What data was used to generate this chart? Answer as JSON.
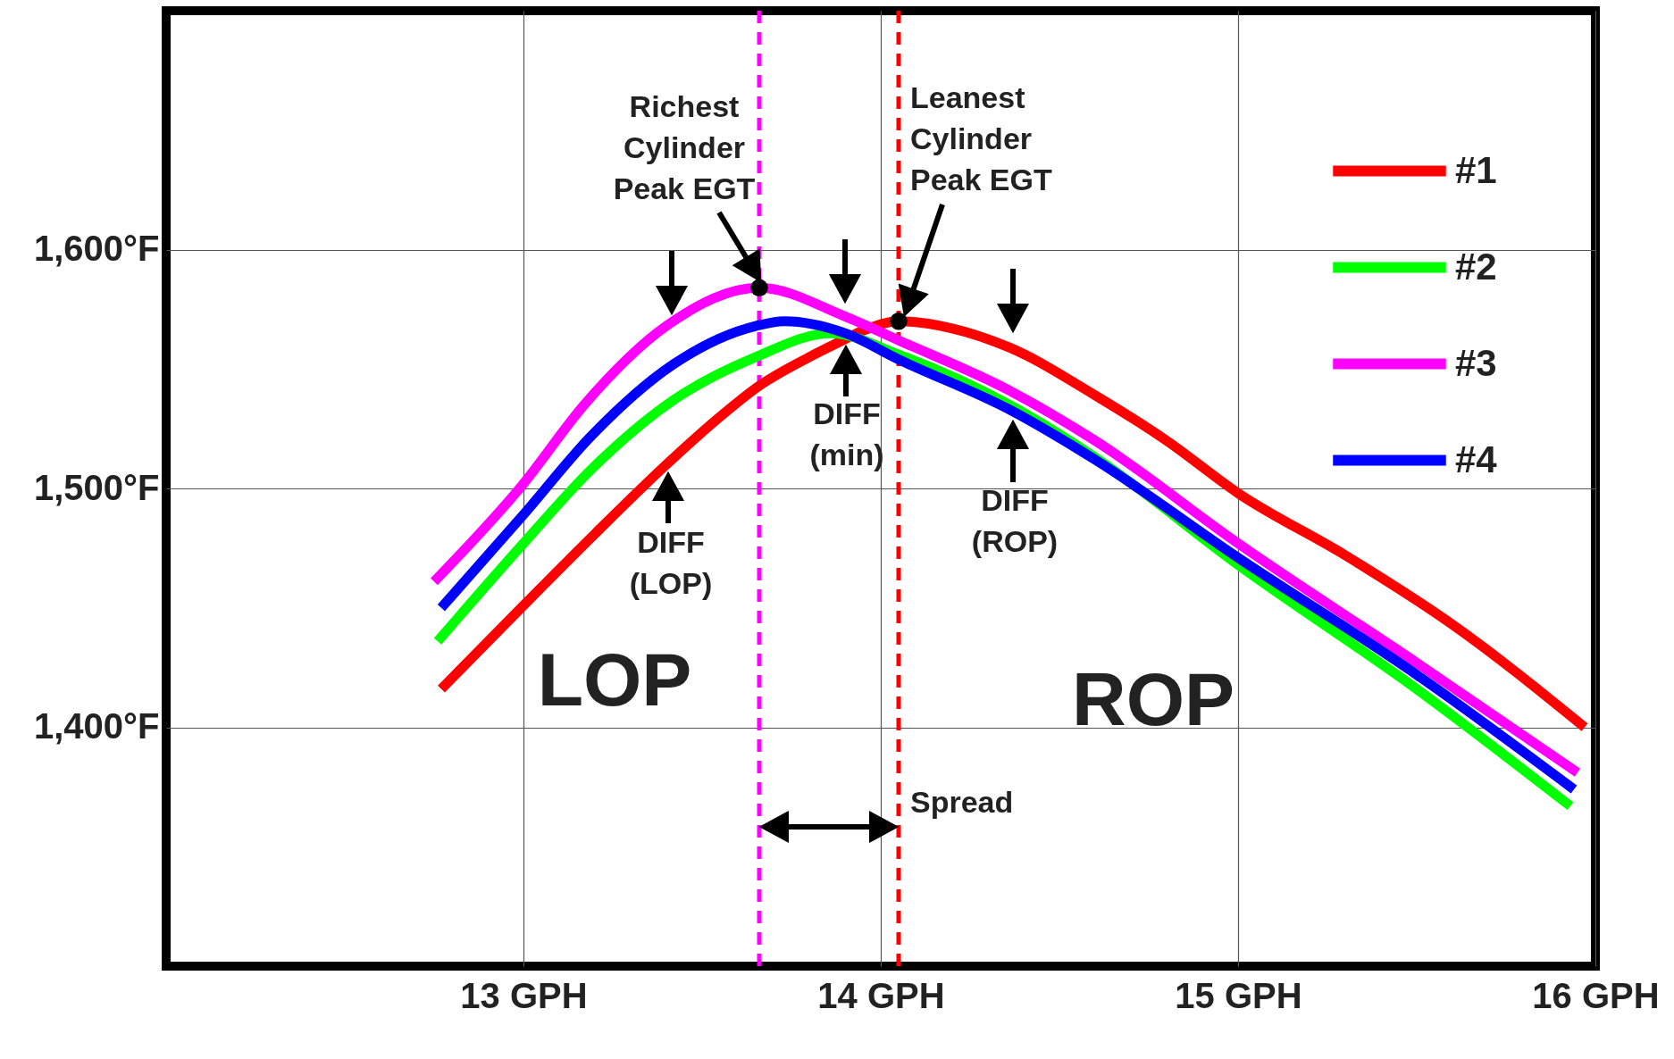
{
  "chart_data": {
    "type": "line",
    "xlim": [
      12,
      16
    ],
    "ylim": [
      1300,
      1700
    ],
    "xticks": [
      {
        "value": 13,
        "label": "13 GPH"
      },
      {
        "value": 14,
        "label": "14 GPH"
      },
      {
        "value": 15,
        "label": "15 GPH"
      },
      {
        "value": 16,
        "label": "16 GPH"
      }
    ],
    "yticks": [
      {
        "value": 1400,
        "label": "1,400°F"
      },
      {
        "value": 1500,
        "label": "1,500°F"
      },
      {
        "value": 1600,
        "label": "1,600°F"
      }
    ],
    "grid": true,
    "legend": "top right",
    "series": [
      {
        "name": "#1",
        "color": "#ff0000",
        "x": [
          12.77,
          13.0,
          13.2,
          13.4,
          13.55,
          13.66,
          13.8,
          13.88,
          13.95,
          14.05,
          14.2,
          14.36,
          14.6,
          14.8,
          15.0,
          15.3,
          15.6,
          15.97
        ],
        "values": [
          1416,
          1451,
          1481,
          1510,
          1530,
          1543,
          1555,
          1561,
          1566,
          1570,
          1567,
          1559,
          1539,
          1520,
          1498,
          1472,
          1443,
          1400
        ]
      },
      {
        "name": "#2",
        "color": "#00ff00",
        "x": [
          12.76,
          13.0,
          13.19,
          13.42,
          13.65,
          13.86,
          14.05,
          14.36,
          14.6,
          15.0,
          15.5,
          15.93
        ],
        "values": [
          1436,
          1477,
          1508,
          1537,
          1555,
          1565,
          1556,
          1535,
          1513,
          1468,
          1416,
          1367
        ]
      },
      {
        "name": "#3",
        "color": "#ff00ff",
        "x": [
          12.75,
          13.0,
          13.17,
          13.4,
          13.66,
          13.9,
          14.05,
          14.36,
          14.6,
          15.0,
          15.5,
          15.95
        ],
        "values": [
          1461,
          1502,
          1535,
          1568,
          1584,
          1572,
          1562,
          1541,
          1520,
          1477,
          1427,
          1381
        ]
      },
      {
        "name": "#4",
        "color": "#0000ff",
        "x": [
          12.77,
          13.0,
          13.19,
          13.42,
          13.65,
          13.73,
          13.9,
          14.05,
          14.36,
          14.6,
          15.0,
          15.5,
          15.94
        ],
        "values": [
          1450,
          1489,
          1522,
          1552,
          1568,
          1570,
          1565,
          1554,
          1533,
          1512,
          1471,
          1422,
          1374
        ]
      },
      {
        "type": "scatter",
        "color": "#000000",
        "x": [
          13.66,
          14.05
        ],
        "values": [
          1584,
          1570
        ]
      }
    ],
    "ref_lines": [
      {
        "axis": "x",
        "value": 13.66,
        "color": "#ff00ff",
        "line_style": "dashed"
      },
      {
        "axis": "x",
        "value": 14.05,
        "color": "#ff0000",
        "line_style": "dashed"
      }
    ],
    "annotations": [
      "Richest\nCylinder\nPeak EGT",
      "Leanest\nCylinder\nPeak EGT",
      "DIFF\n(LOP)",
      "DIFF\n(min)",
      "DIFF\n(ROP)",
      "LOP",
      "ROP",
      "Spread"
    ]
  }
}
